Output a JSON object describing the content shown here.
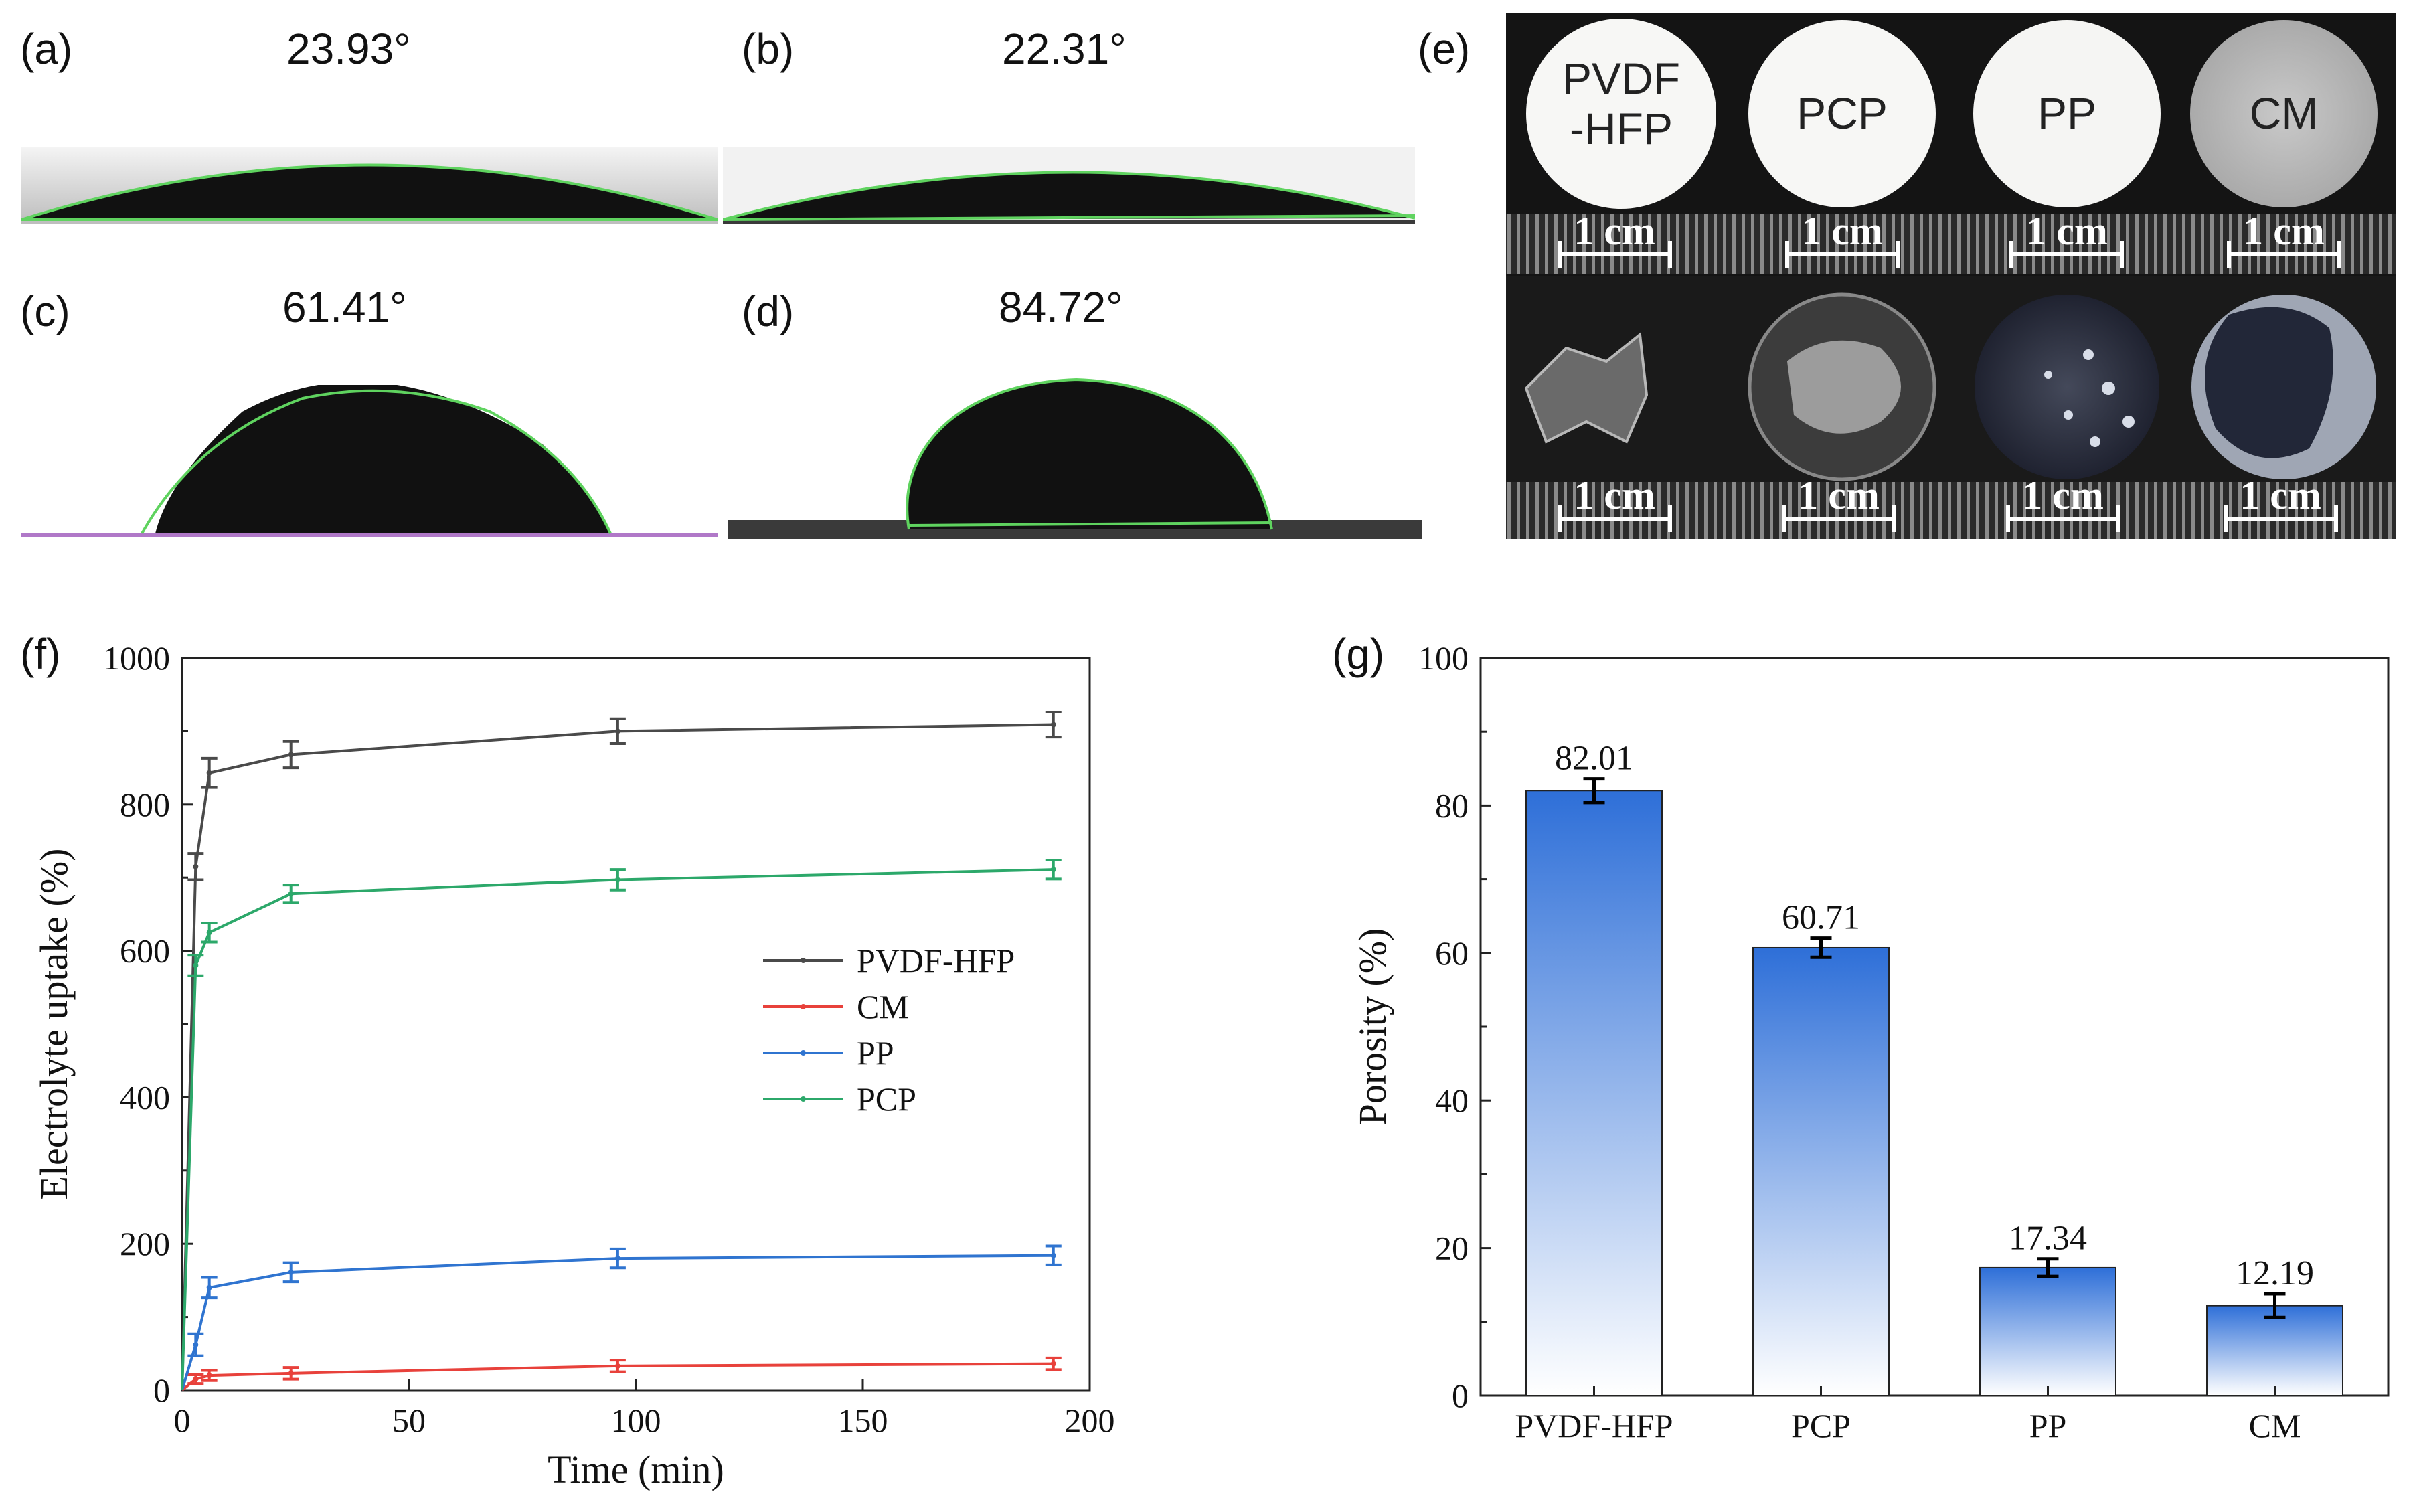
{
  "panels": {
    "a": {
      "label": "(a)",
      "angle": "23.93°"
    },
    "b": {
      "label": "(b)",
      "angle": "22.31°"
    },
    "c": {
      "label": "(c)",
      "angle": "61.41°"
    },
    "d": {
      "label": "(d)",
      "angle": "84.72°"
    },
    "e": {
      "label": "(e)",
      "samples": [
        "PVDF-HFP",
        "PCP",
        "PP",
        "CM"
      ],
      "disk_labels": {
        "pvdf_line1": "PVDF",
        "pvdf_line2": "-HFP",
        "pcp": "PCP",
        "pp": "PP",
        "cm": "CM"
      },
      "scale_bar": "1 cm"
    },
    "f": {
      "label": "(f)"
    },
    "g": {
      "label": "(g)"
    }
  },
  "colors": {
    "pvdf": "#4a4a4a",
    "cm": "#e8413b",
    "pp": "#2f74d0",
    "pcp": "#2ca86a",
    "bar_top": "#2e6fd8",
    "bar_bottom": "#ffffff",
    "fit_line": "#5fd35f"
  },
  "chart_data": [
    {
      "type": "line",
      "panel": "(f)",
      "xlabel": "Time (min)",
      "ylabel": "Electrolyte uptake (%)",
      "xlim": [
        0,
        200
      ],
      "ylim": [
        0,
        1000
      ],
      "xticks": [
        0,
        50,
        100,
        150,
        200
      ],
      "yticks": [
        0,
        200,
        400,
        600,
        800,
        1000
      ],
      "legend_position": "center-right",
      "series": [
        {
          "name": "PVDF-HFP",
          "color": "#4a4a4a",
          "x": [
            0,
            3,
            6,
            24,
            96,
            192
          ],
          "y": [
            0,
            715,
            843,
            868,
            900,
            909
          ],
          "err": [
            0,
            18,
            20,
            18,
            17,
            17
          ]
        },
        {
          "name": "CM",
          "color": "#e8413b",
          "x": [
            0,
            3,
            6,
            24,
            96,
            192
          ],
          "y": [
            0,
            15,
            20,
            23,
            33,
            36
          ],
          "err": [
            0,
            6,
            7,
            8,
            8,
            8
          ]
        },
        {
          "name": "PP",
          "color": "#2f74d0",
          "x": [
            0,
            3,
            6,
            24,
            96,
            192
          ],
          "y": [
            0,
            62,
            140,
            161,
            180,
            184
          ],
          "err": [
            0,
            15,
            14,
            13,
            13,
            13
          ]
        },
        {
          "name": "PCP",
          "color": "#2ca86a",
          "x": [
            0,
            3,
            6,
            24,
            96,
            192
          ],
          "y": [
            0,
            580,
            625,
            678,
            697,
            711
          ],
          "err": [
            0,
            14,
            13,
            12,
            14,
            13
          ]
        }
      ]
    },
    {
      "type": "bar",
      "panel": "(g)",
      "xlabel": "",
      "ylabel": "Porosity (%)",
      "ylim": [
        0,
        100
      ],
      "yticks": [
        0,
        20,
        40,
        60,
        80,
        100
      ],
      "categories": [
        "PVDF-HFP",
        "PCP",
        "PP",
        "CM"
      ],
      "values": [
        82.01,
        60.71,
        17.34,
        12.19
      ],
      "value_labels": [
        "82.01",
        "60.71",
        "17.34",
        "12.19"
      ],
      "err": [
        1.6,
        1.3,
        1.2,
        1.6
      ]
    }
  ]
}
